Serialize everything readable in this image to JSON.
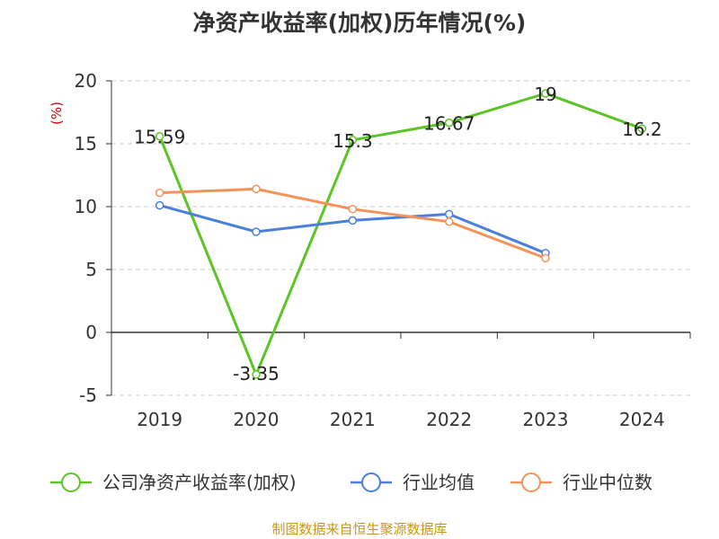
{
  "title": "净资产收益率(加权)历年情况(%)",
  "source": "制图数据来自恒生聚源数据库",
  "chart_data": {
    "type": "line",
    "title": "净资产收益率(加权)历年情况(%)",
    "ylabel": "(%)",
    "xlabel": "",
    "categories": [
      "2019",
      "2020",
      "2021",
      "2022",
      "2023",
      "2024"
    ],
    "ylim": [
      -5,
      20
    ],
    "yticks": [
      -5,
      0,
      5,
      10,
      15,
      20
    ],
    "grid": true,
    "legend_position": "bottom",
    "series": [
      {
        "name": "公司净资产收益率(加权)",
        "color": "#5cc424",
        "values": [
          15.59,
          -3.35,
          15.3,
          16.67,
          19,
          16.2
        ],
        "data_labels": [
          "15.59",
          "-3.35",
          "15.3",
          "16.67",
          "19",
          "16.2"
        ]
      },
      {
        "name": "行业均值",
        "color": "#4a7fdc",
        "values": [
          10.1,
          8.0,
          8.9,
          9.4,
          6.3,
          null
        ]
      },
      {
        "name": "行业中位数",
        "color": "#f5925a",
        "values": [
          11.1,
          11.4,
          9.8,
          8.8,
          5.9,
          null
        ]
      }
    ]
  }
}
